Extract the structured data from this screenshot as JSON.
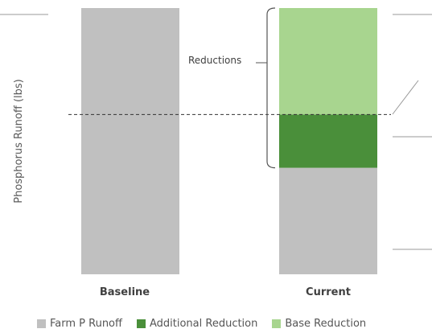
{
  "chart_data": {
    "type": "bar",
    "stacked": true,
    "categories": [
      "Baseline",
      "Current"
    ],
    "ylabel": "Phosphorus Runoff (lbs)",
    "xlabel": "",
    "ylim": [
      0,
      1
    ],
    "grid": false,
    "legend_placement": "bottom",
    "series": [
      {
        "name": "Farm P Runoff",
        "color": "#c0c0c0",
        "values": [
          1.0,
          0.4
        ]
      },
      {
        "name": "Additional Reduction",
        "color": "#4a8f3a",
        "values": [
          0,
          0.2
        ]
      },
      {
        "name": "Base Reduction",
        "color": "#a8d58f",
        "values": [
          0,
          0.4
        ]
      }
    ],
    "reference_line": {
      "value": 0.6,
      "style": "dashed"
    },
    "annotations": [
      {
        "text": "Reductions",
        "category": "Current",
        "from": 0.4,
        "to": 1.0
      }
    ]
  }
}
